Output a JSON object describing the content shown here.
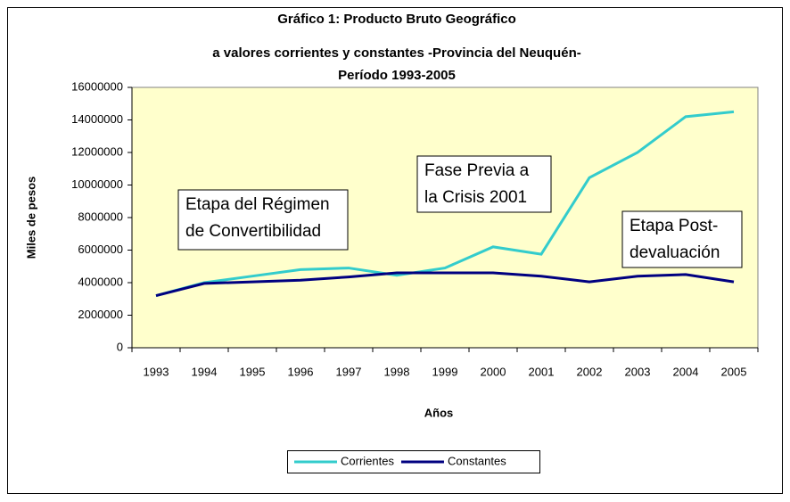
{
  "chart_data": {
    "type": "line",
    "title": [
      "Gráfico 1:  Producto Bruto Geográfico",
      "a valores corrientes y constantes -Provincia del Neuquén-",
      "Período 1993-2005"
    ],
    "x_label": "Años",
    "y_label": "Miles de pesos",
    "categories": [
      "1993",
      "1994",
      "1995",
      "1996",
      "1997",
      "1998",
      "1999",
      "2000",
      "2001",
      "2002",
      "2003",
      "2004",
      "2005"
    ],
    "series": [
      {
        "name": "Corrientes",
        "color": "#33cccc",
        "values": [
          3200000,
          4000000,
          4400000,
          4800000,
          4900000,
          4450000,
          4900000,
          6200000,
          5750000,
          10450000,
          12000000,
          14200000,
          14500000
        ]
      },
      {
        "name": "Constantes",
        "color": "#000080",
        "values": [
          3200000,
          3950000,
          4050000,
          4150000,
          4350000,
          4600000,
          4600000,
          4600000,
          4400000,
          4050000,
          4400000,
          4500000,
          4050000
        ]
      }
    ],
    "ylim": [
      0,
      16000000
    ],
    "yticks": [
      0,
      2000000,
      4000000,
      6000000,
      8000000,
      10000000,
      12000000,
      14000000,
      16000000
    ],
    "grid": false,
    "legend": "bottom",
    "annotations": [
      {
        "lines": [
          "Etapa del Régimen",
          "de Convertibilidad"
        ]
      },
      {
        "lines": [
          "Fase Previa a",
          "la Crisis 2001"
        ]
      },
      {
        "lines": [
          "Etapa Post-",
          "devaluación"
        ]
      }
    ]
  }
}
